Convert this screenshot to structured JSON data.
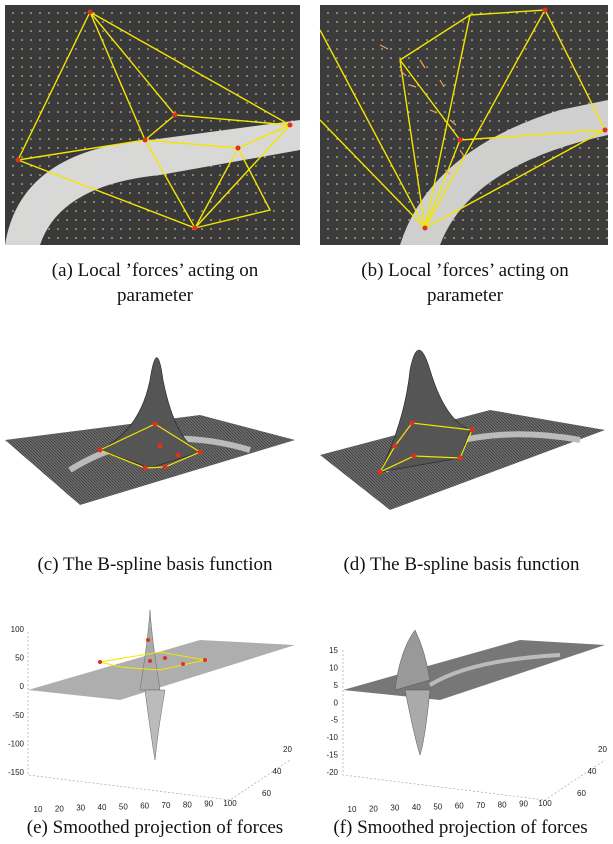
{
  "figure": {
    "subfigures": [
      {
        "label": "(a)",
        "caption": "Local ’forces’ acting on parameter"
      },
      {
        "label": "(b)",
        "caption": "Local ’forces’ acting on parameter"
      },
      {
        "label": "(c)",
        "caption": "The B-spline basis function"
      },
      {
        "label": "(d)",
        "caption": "The B-spline basis function"
      },
      {
        "label": "(e)",
        "caption": "Smoothed projection of forces"
      },
      {
        "label": "(f)",
        "caption": "Smoothed projection of forces"
      }
    ],
    "plot_e": {
      "zticks": [
        100,
        50,
        0,
        -50,
        -100,
        -150
      ],
      "xticks": [
        10,
        20,
        30,
        40,
        50,
        60,
        70,
        80,
        90,
        100
      ],
      "yticks": [
        20,
        40,
        60
      ]
    },
    "plot_f": {
      "zticks": [
        15,
        10,
        5,
        0,
        -5,
        -10,
        -15,
        -20
      ],
      "xticks": [
        10,
        20,
        30,
        40,
        50,
        60,
        70,
        80,
        90,
        100
      ],
      "yticks": [
        20,
        40,
        60
      ]
    }
  }
}
